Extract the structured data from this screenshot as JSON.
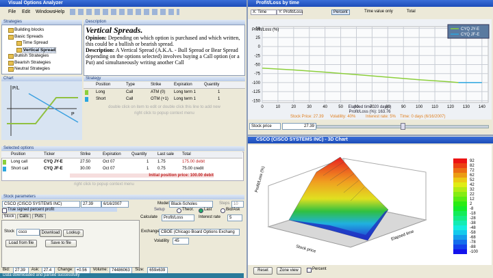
{
  "main_window": {
    "title": "Visual Options Analyzer",
    "menu": [
      "File",
      "Edit",
      "Windows",
      "Help"
    ],
    "strategies": {
      "header": "Strategies",
      "items": [
        "Building blocks",
        "Basic Spreads",
        "Time Spread",
        "Vertical Spread",
        "Bullish Strategies",
        "Bearish Strategies",
        "Neutral Strategies"
      ]
    },
    "description": {
      "header": "Description",
      "heading": "Vertical Spreads.",
      "opinion_label": "Opinion:",
      "opinion": " Depending on which option is purchased and which written, this could be a bullish or bearish spread.",
      "description_label": "Description:",
      "description": " A Vertical Spread (A.K.A. - Bull Spread or Bear Spread depending on the options selected) involves buying a Call option (or a Put) and simultaneously writing another Call"
    },
    "chart": {
      "header": "Chart",
      "y_label": "P/L",
      "x_label": "P"
    },
    "strategy": {
      "header": "Strategy",
      "columns": [
        "Position",
        "Type",
        "Strike",
        "Expiration",
        "Quantity"
      ],
      "rows": [
        [
          "Long",
          "Call",
          "ATM (0)",
          "Long term 1",
          "1"
        ],
        [
          "Short",
          "Call",
          "OTM (+1)",
          "Long term 1",
          "1"
        ]
      ],
      "hints": [
        "double click on item to edit or double click this line to add new",
        "right click to popup context menu"
      ]
    },
    "selected_options": {
      "header": "Selected options",
      "columns": [
        "Position",
        "Ticker",
        "Strike",
        "Expiration",
        "Quantity",
        "Last sale",
        "Total"
      ],
      "rows": [
        [
          "Long call",
          "CYQ JY-E",
          "27.50",
          "Oct 07",
          "1",
          "1.75",
          "175.00 debit"
        ],
        [
          "Short call",
          "CYQ JF-E",
          "30.00",
          "Oct 07",
          "1",
          "0.75",
          "75.00 credit"
        ]
      ],
      "total": "Initial position price: 100.00 debit",
      "hint": "right click to popup context menu"
    },
    "stock_parameters": {
      "header": "Stock parameters",
      "stock_name": "CSCO (CISCO SYSTEMS INC)",
      "price": "27.39",
      "date": "6/16/2007",
      "model_label": "Model",
      "model": "Black-Scholes",
      "steps_label": "Steps",
      "steps": "10",
      "signed": "True signed percent profit",
      "setup": "Setup",
      "price_sources": [
        "Theor.",
        "Last",
        "Bid/Ask"
      ],
      "tabs": [
        "Stock",
        "Calls",
        "Puts"
      ],
      "calculate_label": "Calculate",
      "calculate": "Profit/Loss",
      "interest_label": "Interest rate",
      "interest": "5",
      "stock_label": "Stock",
      "ticker": "csco",
      "buttons": [
        "Download",
        "Lookup",
        "Load from file",
        "Save to file"
      ],
      "exchange_label": "Exchange",
      "exchange": "CBOE (Chicago Board Options Exchang",
      "volatility_label": "Volatility",
      "volatility": "45",
      "quote": [
        [
          "Bid:",
          "27.39"
        ],
        [
          "Ask:",
          "27.4"
        ],
        [
          "Change:",
          "+0.56"
        ],
        [
          "Volume:",
          "74486063"
        ],
        [
          "Size:",
          "659x639"
        ]
      ],
      "status": "Data downloaded and parsed successfully"
    }
  },
  "profit_loss_window": {
    "title": "Profit/Loss by time",
    "toolbar": [
      "X: Time",
      "Y: Profit/Loss",
      "Percent",
      "Time value only",
      "Total"
    ],
    "chart": {
      "type": "line",
      "y_label": "Profit/Loss (%)",
      "x": [
        0,
        20,
        40,
        60,
        80,
        100,
        120,
        125,
        140
      ],
      "series": [
        {
          "name": "CYQ JY-E",
          "color": "#8ccf3a",
          "values": [
            -60,
            -65,
            -71,
            -78,
            -85,
            -92,
            -98,
            -100,
            null
          ]
        },
        {
          "name": "CYQ JF-E",
          "color": "#2aa6e0",
          "values": [
            null,
            null,
            null,
            null,
            null,
            null,
            null,
            -100,
            -100
          ]
        }
      ],
      "xlim": [
        0,
        144
      ],
      "xticks": [
        0,
        10,
        20,
        30,
        40,
        50,
        60,
        70,
        80,
        90,
        100,
        110,
        120,
        130,
        140
      ],
      "ylim": [
        -155,
        55
      ],
      "yticks": [
        50,
        25,
        0,
        -25,
        -50,
        -75,
        -100,
        -125,
        -150
      ],
      "grid": true
    },
    "info": [
      "Elapsed time: 20 day(s)",
      "Profit/Loss (%): 163.76"
    ],
    "status": [
      "Stock Price: 27.39",
      "Volatility: 40%",
      "Interest rate: 5%",
      "Time: 0 days (6/16/2007)"
    ],
    "stock_price_label": "Stock price",
    "stock_price": "27.39"
  },
  "chart_3d_window": {
    "title": "CSCO (CISCO SYSTEMS INC) - 3D Chart",
    "z_label": "Profit/Loss (%)",
    "x_label": "Stock price",
    "y_label": "Elapsed time",
    "colorbar": [
      92,
      82,
      72,
      62,
      52,
      42,
      32,
      22,
      12,
      2,
      -8,
      -18,
      -28,
      -38,
      -48,
      -58,
      -68,
      -78,
      -88,
      -100
    ],
    "buttons": [
      "Reset",
      "Zone view"
    ],
    "checkbox": "Percent"
  }
}
